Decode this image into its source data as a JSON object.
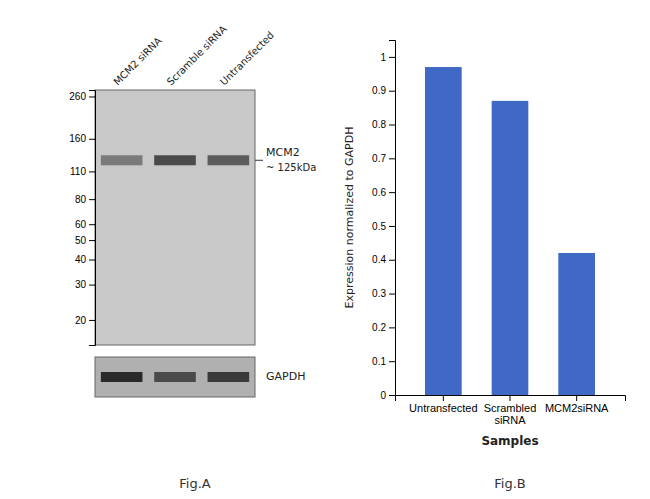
{
  "chart_data": [
    {
      "type": "blot",
      "title": "Fig.A",
      "categories": [
        "MCM2 siRNA",
        "Scramble siRNA",
        "Untransfected"
      ],
      "ylim": [
        15,
        280
      ],
      "yticks": [
        260,
        160,
        110,
        80,
        60,
        50,
        40,
        30,
        20
      ],
      "log": "y",
      "series": [
        {
          "name": "MCM2",
          "values": [
            125,
            125,
            125
          ],
          "colors": [
            "#7a7a7a",
            "#4a4a4a",
            "#5c5c5c"
          ]
        }
      ],
      "annotations": [
        "~ 125kDa",
        "GAPDH"
      ],
      "colors": [
        "#2a2a2a",
        "#4a4a4a",
        "#3a3a3a"
      ]
    },
    {
      "type": "bar",
      "title": "Fig.B",
      "categories": [
        "Untransfected",
        "Scrambled\nsiRNA",
        "MCM2siRNA"
      ],
      "values": [
        0.97,
        0.87,
        0.42
      ],
      "color": "#3f69c4",
      "xlabel": "Samples",
      "ylabel": "Expression normalized to GAPDH",
      "ylim": [
        0,
        1.05
      ],
      "yticks": [
        0,
        0.1,
        0.2,
        0.3,
        0.4,
        0.5,
        0.6,
        0.7,
        0.8,
        0.9,
        1
      ]
    }
  ]
}
